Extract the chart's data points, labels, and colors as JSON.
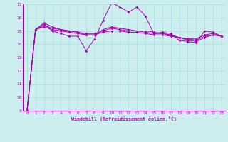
{
  "xlabel": "Windchill (Refroidissement éolien,°C)",
  "background_color": "#cceeee",
  "grid_color": "#aadddd",
  "line_color": "#aa00aa",
  "xlim": [
    -0.5,
    23.5
  ],
  "ylim": [
    9,
    17
  ],
  "xticks": [
    0,
    1,
    2,
    3,
    4,
    5,
    6,
    7,
    8,
    9,
    10,
    11,
    12,
    13,
    14,
    15,
    16,
    17,
    18,
    19,
    20,
    21,
    22,
    23
  ],
  "yticks": [
    9,
    10,
    11,
    12,
    13,
    14,
    15,
    16,
    17
  ],
  "series": [
    [
      9.0,
      15.1,
      15.5,
      15.0,
      14.8,
      14.6,
      14.6,
      13.5,
      14.4,
      15.8,
      17.1,
      16.8,
      16.4,
      16.8,
      16.1,
      14.8,
      14.9,
      14.8,
      14.3,
      14.2,
      14.1,
      15.0,
      14.9,
      14.6
    ],
    [
      9.0,
      15.1,
      15.6,
      15.3,
      15.1,
      15.0,
      14.9,
      14.7,
      14.7,
      15.1,
      15.3,
      15.2,
      15.1,
      15.0,
      15.0,
      14.9,
      14.8,
      14.7,
      14.5,
      14.4,
      14.4,
      14.7,
      14.8,
      14.6
    ],
    [
      9.0,
      15.1,
      15.4,
      15.2,
      15.1,
      15.0,
      14.9,
      14.8,
      14.8,
      15.0,
      15.2,
      15.1,
      15.0,
      15.0,
      14.9,
      14.8,
      14.8,
      14.7,
      14.5,
      14.4,
      14.3,
      14.6,
      14.7,
      14.6
    ],
    [
      9.0,
      15.1,
      15.3,
      15.1,
      15.0,
      14.9,
      14.8,
      14.7,
      14.7,
      14.9,
      15.0,
      15.0,
      14.9,
      14.9,
      14.8,
      14.7,
      14.7,
      14.6,
      14.5,
      14.3,
      14.2,
      14.5,
      14.7,
      14.6
    ]
  ]
}
